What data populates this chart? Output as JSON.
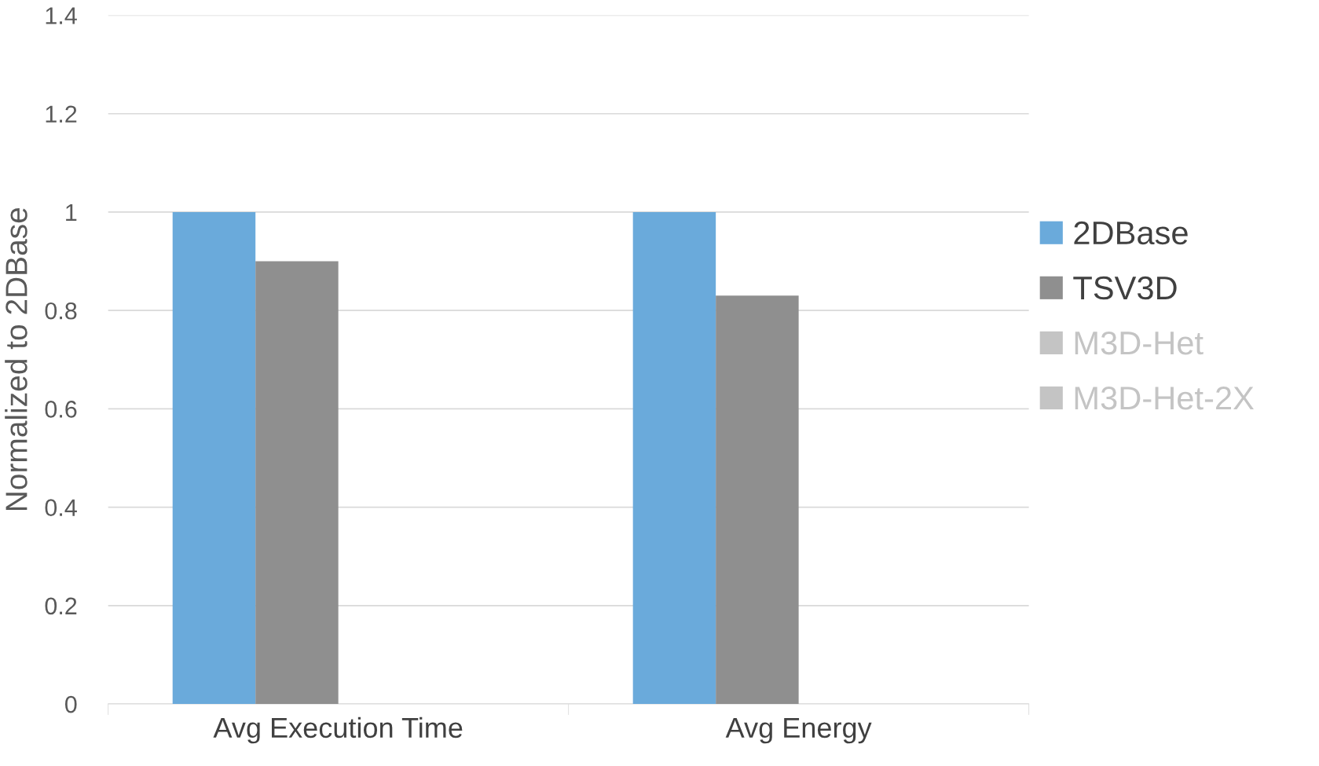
{
  "chart_data": {
    "type": "bar",
    "ylabel": "Normalized to 2DBase",
    "categories": [
      "Avg Execution Time",
      "Avg Energy"
    ],
    "series": [
      {
        "name": "2DBase",
        "color": "#6aaadb",
        "values": [
          1,
          1
        ]
      },
      {
        "name": "TSV3D",
        "color": "#8f8f8f",
        "values": [
          0.9,
          0.83
        ]
      },
      {
        "name": "M3D-Het",
        "color": "#c4c4c4",
        "values": [
          null,
          null
        ]
      },
      {
        "name": "M3D-Het-2X",
        "color": "#c4c4c4",
        "values": [
          null,
          null
        ]
      }
    ],
    "ylim": [
      0,
      1.4
    ],
    "yticks": [
      0,
      0.2,
      0.4,
      0.6,
      0.8,
      1,
      1.2,
      1.4
    ],
    "grid": "y",
    "legend": "right"
  }
}
